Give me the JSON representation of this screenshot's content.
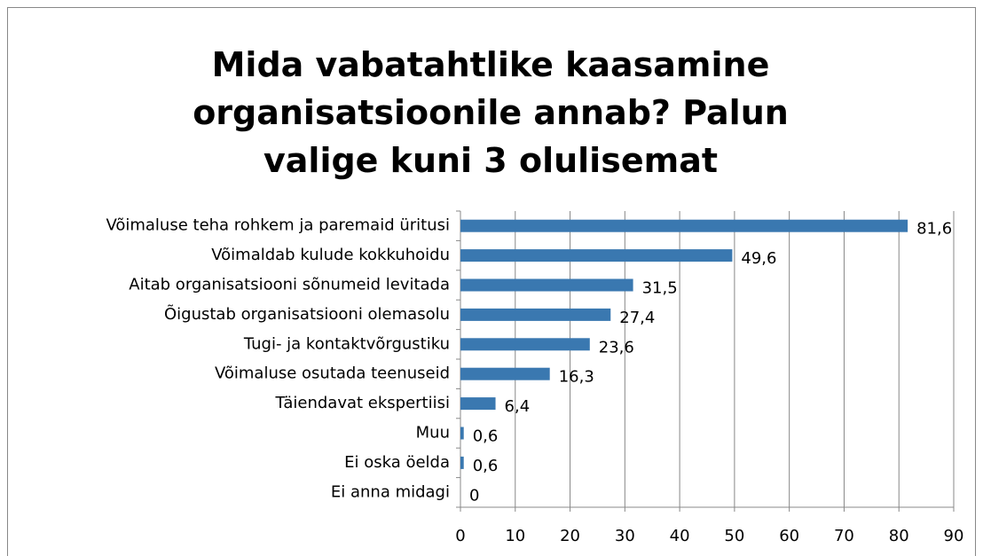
{
  "chart_data": {
    "type": "bar",
    "orientation": "horizontal",
    "title": "Mida vabatahtlike kaasamine organisatsioonile annab? Palun valige kuni 3 olulisemat",
    "categories": [
      "Võimaluse teha rohkem ja paremaid üritusi",
      "Võimaldab kulude kokkuhoidu",
      "Aitab organisatsiooni sõnumeid levitada",
      "Õigustab organisatsiooni olemasolu",
      "Tugi- ja kontaktvõrgustiku",
      "Võimaluse osutada teenuseid",
      "Täiendavat ekspertiisi",
      "Muu",
      "Ei oska öelda",
      "Ei anna midagi"
    ],
    "values": [
      81.6,
      49.6,
      31.5,
      27.4,
      23.6,
      16.3,
      6.4,
      0.6,
      0.6,
      0
    ],
    "value_labels": [
      "81,6",
      "49,6",
      "31,5",
      "27,4",
      "23,6",
      "16,3",
      "6,4",
      "0,6",
      "0,6",
      "0"
    ],
    "color": "#3a78b0",
    "xlim": [
      0,
      90
    ],
    "xticks": [
      0,
      10,
      20,
      30,
      40,
      50,
      60,
      70,
      80,
      90
    ],
    "grid": true
  }
}
